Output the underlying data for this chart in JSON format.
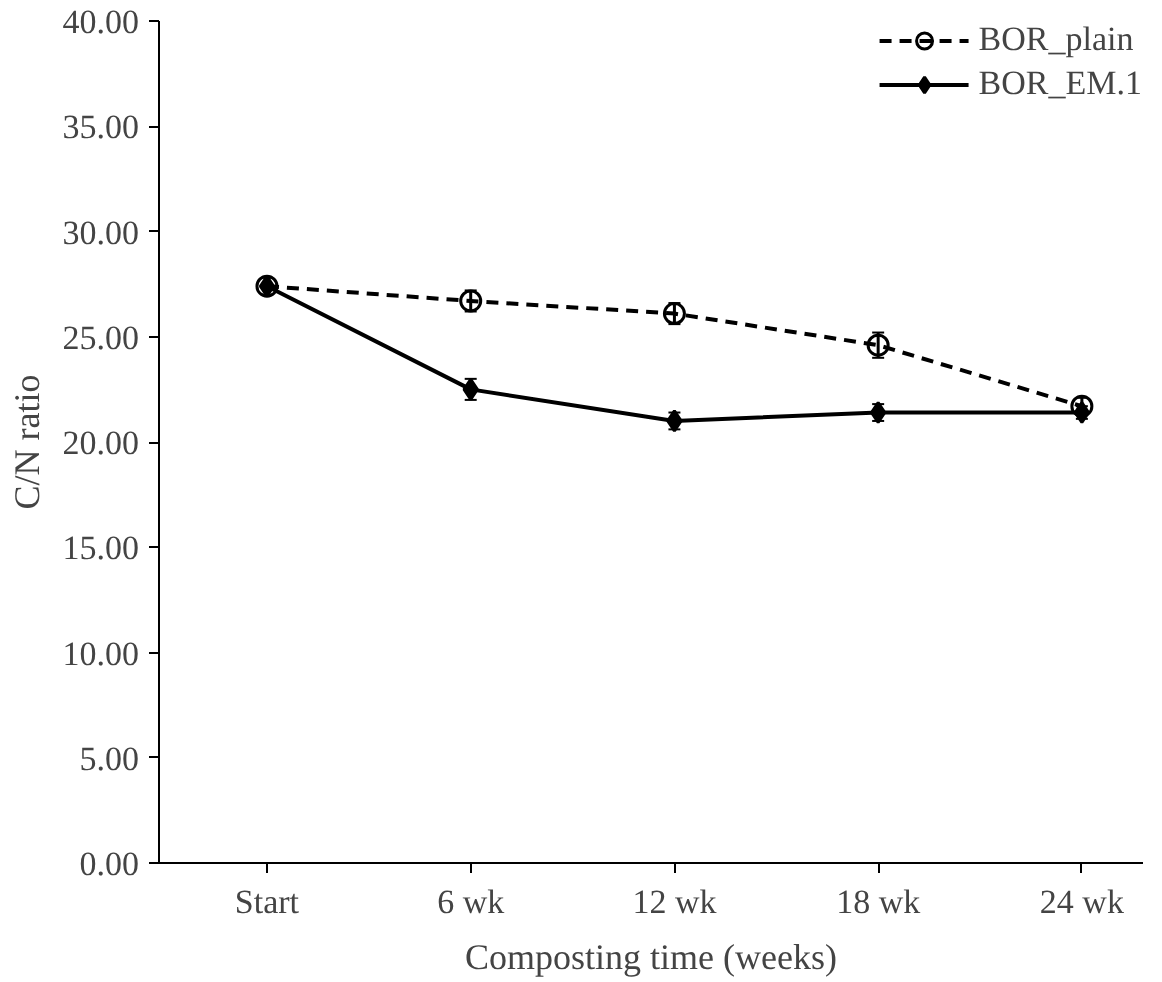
{
  "chart_data": {
    "type": "line",
    "xlabel": "Composting time (weeks)",
    "ylabel": "C/N ratio",
    "categories": [
      "Start",
      "6 wk",
      "12 wk",
      "18 wk",
      "24 wk"
    ],
    "series": [
      {
        "name": "BOR_plain",
        "color": "#000000",
        "values": [
          27.4,
          26.7,
          26.1,
          24.6,
          21.7
        ],
        "errors": [
          0.4,
          0.5,
          0.5,
          0.6,
          0.4
        ],
        "marker": "circle",
        "line_style": "dashed"
      },
      {
        "name": "BOR_EM.1",
        "color": "#000000",
        "values": [
          27.4,
          22.5,
          21.0,
          21.4,
          21.4
        ],
        "errors": [
          null,
          0.5,
          0.4,
          0.4,
          0.3
        ],
        "marker": "diamond",
        "line_style": "solid"
      }
    ],
    "ylim": [
      0,
      40
    ],
    "yticks": [
      {
        "value": 0,
        "label": "0.00"
      },
      {
        "value": 5,
        "label": "5.00"
      },
      {
        "value": 10,
        "label": "10.00"
      },
      {
        "value": 15,
        "label": "15.00"
      },
      {
        "value": 20,
        "label": "20.00"
      },
      {
        "value": 25,
        "label": "25.00"
      },
      {
        "value": 30,
        "label": "30.00"
      },
      {
        "value": 35,
        "label": "35.00"
      },
      {
        "value": 40,
        "label": "40.00"
      }
    ],
    "grid": false,
    "legend": "top right"
  }
}
